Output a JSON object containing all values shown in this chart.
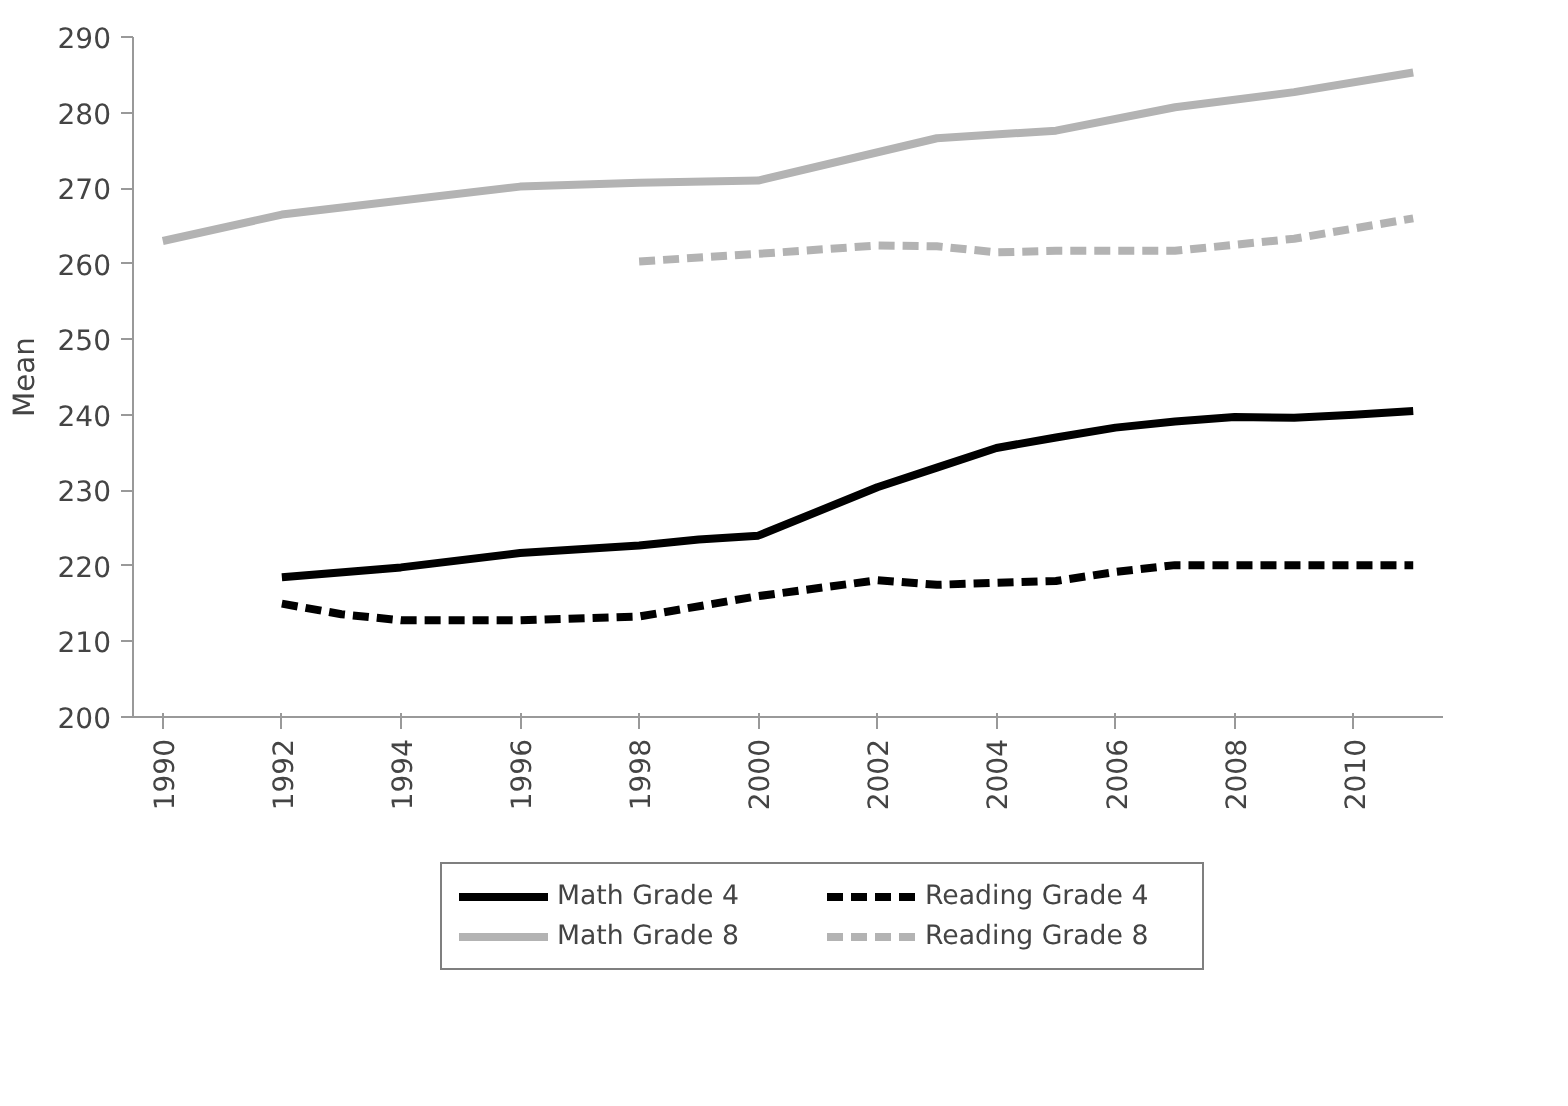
{
  "chart_data": {
    "type": "line",
    "ylabel": "Mean",
    "categories": [
      "1990",
      null,
      "1992",
      null,
      "1994",
      null,
      "1996",
      null,
      "1998",
      null,
      "2000",
      null,
      "2002",
      null,
      "2004",
      null,
      "2006",
      null,
      "2008",
      null,
      "2010",
      null
    ],
    "ylim": [
      200,
      290
    ],
    "yticks": [
      200,
      210,
      220,
      230,
      240,
      250,
      260,
      270,
      280,
      290
    ],
    "grid": false,
    "legend": "bottom",
    "series": [
      {
        "name": "Math Grade 4",
        "color": "#000000",
        "line_style": "solid",
        "values": [
          null,
          null,
          218.5,
          null,
          219.8,
          null,
          221.7,
          null,
          222.7,
          223.5,
          224.0,
          null,
          230.4,
          233.0,
          235.6,
          237.0,
          238.3,
          239.1,
          239.7,
          239.6,
          240.0,
          240.5
        ]
      },
      {
        "name": "Reading Grade 4",
        "color": "#000000",
        "line_style": "dashed",
        "values": [
          null,
          null,
          215.0,
          213.6,
          212.8,
          null,
          212.8,
          null,
          213.3,
          null,
          216.0,
          null,
          218.1,
          217.5,
          null,
          218.0,
          219.2,
          220.1,
          null,
          null,
          null,
          220.1
        ]
      },
      {
        "name": "Math Grade 8",
        "color": "#b3b3b3",
        "line_style": "solid",
        "values": [
          263.0,
          null,
          266.5,
          null,
          null,
          null,
          270.2,
          null,
          270.7,
          null,
          271.0,
          null,
          null,
          276.6,
          null,
          277.6,
          null,
          280.7,
          null,
          282.7,
          null,
          285.3
        ]
      },
      {
        "name": "Reading Grade 8",
        "color": "#b3b3b3",
        "line_style": "dashed",
        "values": [
          null,
          null,
          null,
          null,
          null,
          null,
          null,
          null,
          260.3,
          null,
          261.3,
          null,
          262.4,
          262.3,
          261.5,
          261.7,
          null,
          261.7,
          null,
          263.3,
          null,
          266.0
        ]
      }
    ]
  }
}
